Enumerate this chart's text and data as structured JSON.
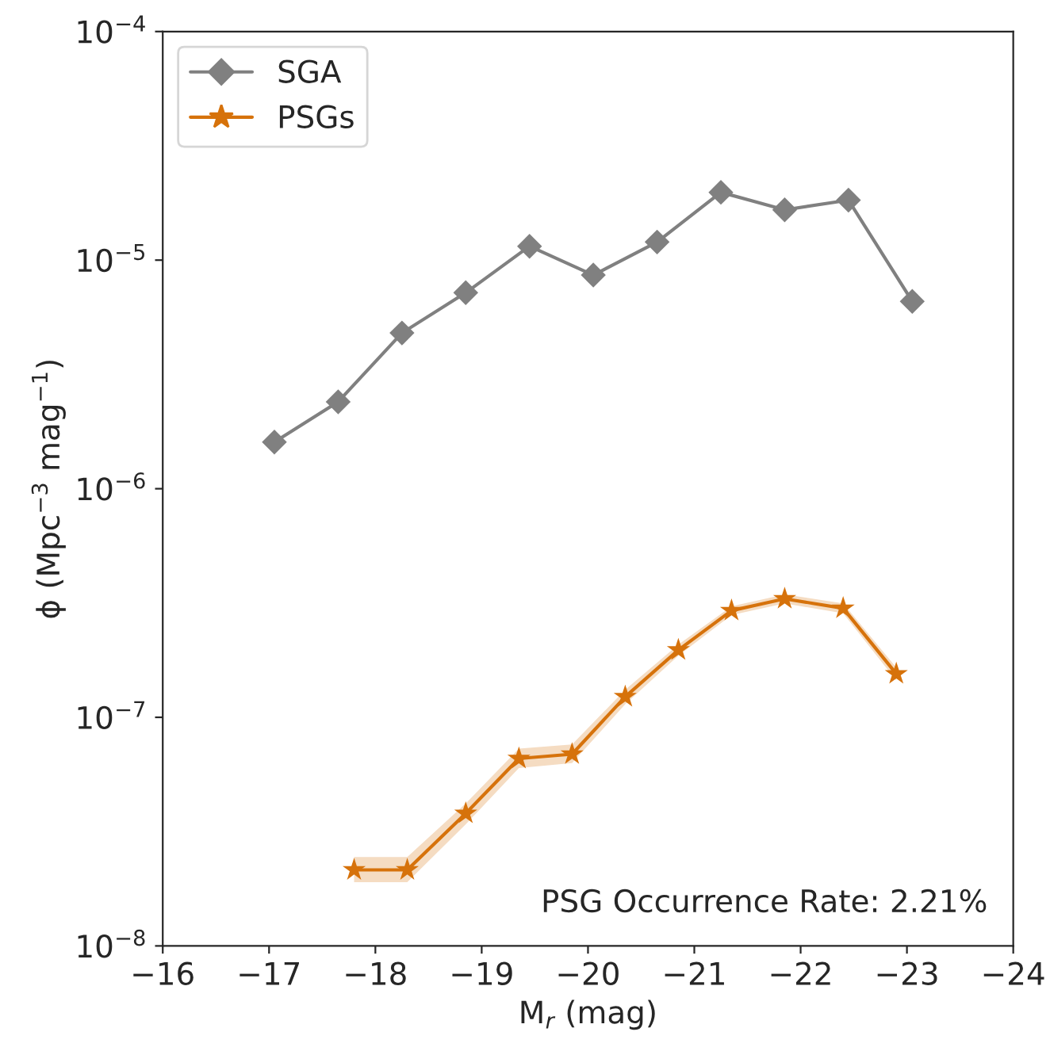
{
  "chart_data": {
    "type": "line",
    "xlabel": "M$_{r}$ (mag)",
    "ylabel": "ϕ (Mpc$^{−3}$ mag$^{−1}$)",
    "log": "y",
    "xlim": [
      -16,
      -24
    ],
    "ylim": [
      1e-08,
      0.0001
    ],
    "xticks": [
      {
        "value": -16,
        "label": "−16"
      },
      {
        "value": -17,
        "label": "−17"
      },
      {
        "value": -18,
        "label": "−18"
      },
      {
        "value": -19,
        "label": "−19"
      },
      {
        "value": -20,
        "label": "−20"
      },
      {
        "value": -21,
        "label": "−21"
      },
      {
        "value": -22,
        "label": "−22"
      },
      {
        "value": -23,
        "label": "−23"
      },
      {
        "value": -24,
        "label": "−24"
      }
    ],
    "yticks": [
      {
        "value": 1e-08,
        "label": "10$^{−8}$"
      },
      {
        "value": 1e-07,
        "label": "10$^{−7}$"
      },
      {
        "value": 1e-06,
        "label": "10$^{−6}$"
      },
      {
        "value": 1e-05,
        "label": "10$^{−5}$"
      },
      {
        "value": 0.0001,
        "label": "10$^{−4}$"
      }
    ],
    "legend": "top left",
    "grid": false,
    "series": [
      {
        "name": "SGA",
        "color": "#808080",
        "marker": "diamond",
        "x": [
          -17.05,
          -17.65,
          -18.25,
          -18.85,
          -19.45,
          -20.05,
          -20.65,
          -21.25,
          -21.85,
          -22.45,
          -23.05
        ],
        "values": [
          1.6e-06,
          2.4e-06,
          4.8e-06,
          7.2e-06,
          1.15e-05,
          8.6e-06,
          1.2e-05,
          1.98e-05,
          1.66e-05,
          1.83e-05,
          6.6e-06
        ]
      },
      {
        "name": "PSGs",
        "color": "#d6720b",
        "marker": "star",
        "x": [
          -17.8,
          -18.3,
          -18.85,
          -19.35,
          -19.85,
          -20.35,
          -20.85,
          -21.35,
          -21.85,
          -22.4,
          -22.9
        ],
        "values": [
          2.15e-08,
          2.15e-08,
          3.8e-08,
          6.6e-08,
          6.9e-08,
          1.23e-07,
          1.97e-07,
          2.93e-07,
          3.3e-07,
          3e-07,
          1.55e-07
        ],
        "lower": [
          1.9e-08,
          1.9e-08,
          3.4e-08,
          6e-08,
          6.3e-08,
          1.14e-07,
          1.86e-07,
          2.8e-07,
          3.15e-07,
          2.85e-07,
          1.45e-07
        ],
        "upper": [
          2.45e-08,
          2.45e-08,
          4.2e-08,
          7.3e-08,
          7.6e-08,
          1.32e-07,
          2.08e-07,
          3.06e-07,
          3.45e-07,
          3.15e-07,
          1.65e-07
        ]
      }
    ],
    "annotations": [
      "PSG Occurrence Rate: 2.21%"
    ]
  }
}
